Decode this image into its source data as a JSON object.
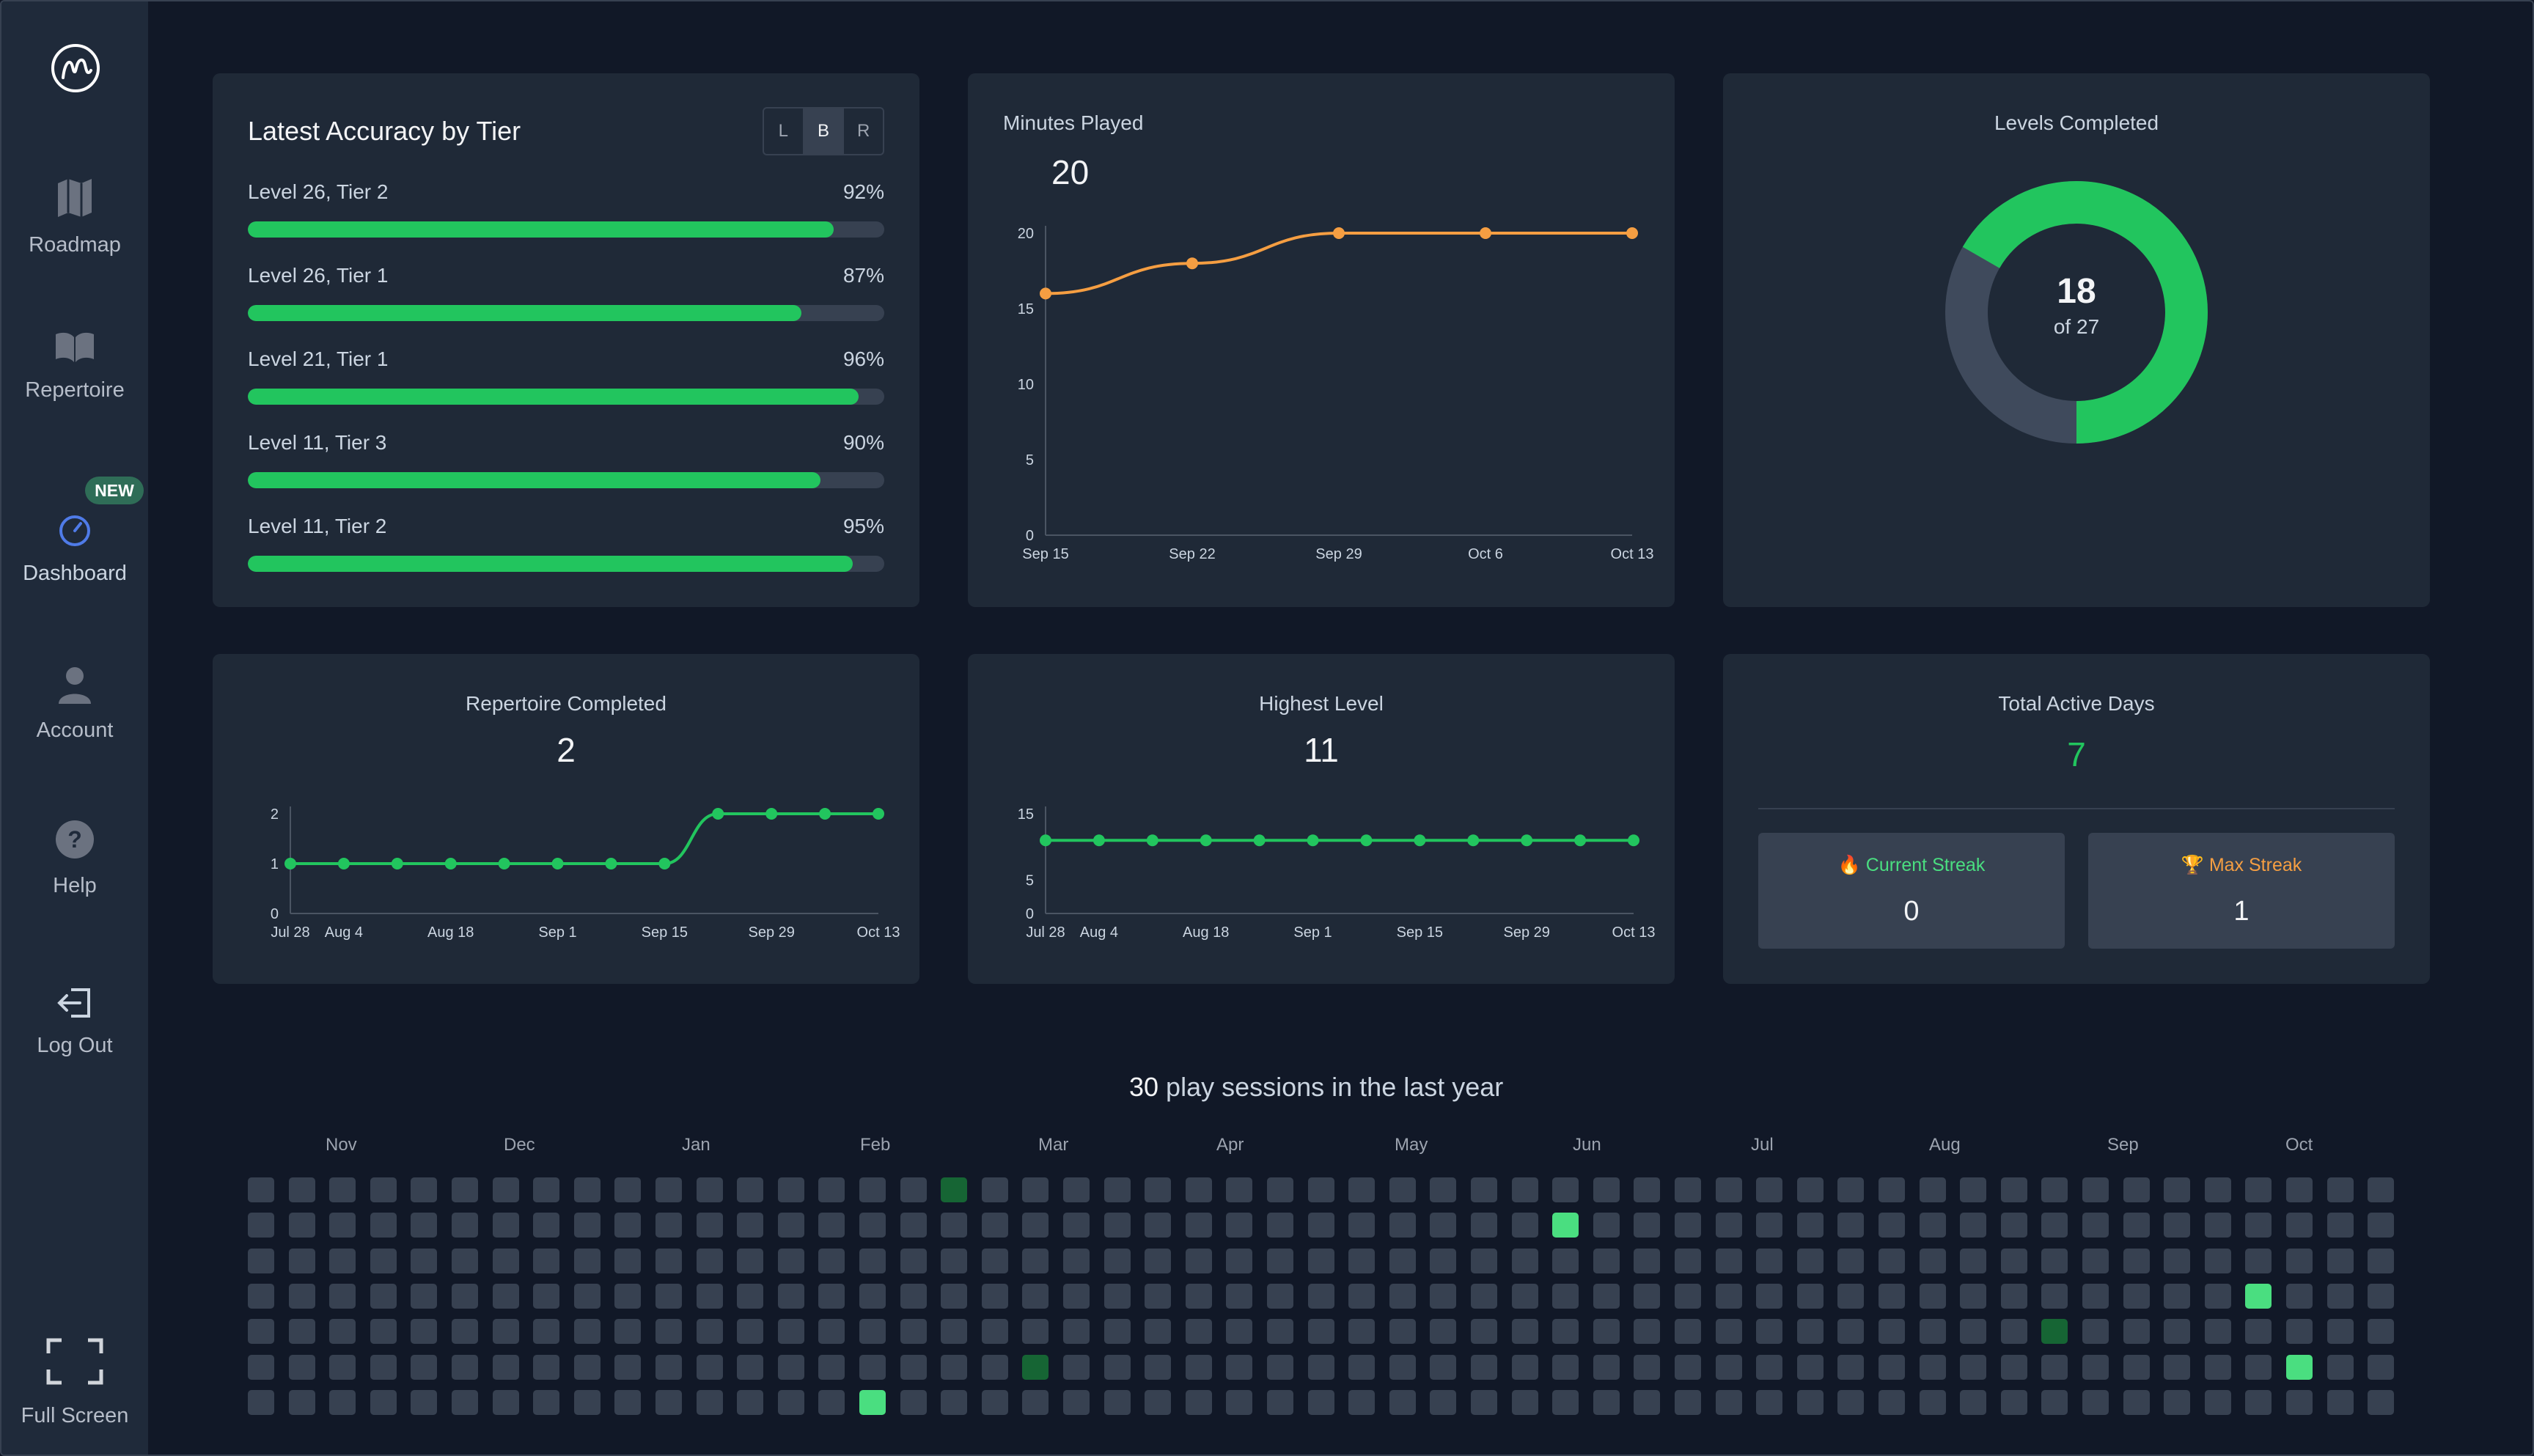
{
  "sidebar": {
    "nav": [
      {
        "id": "roadmap",
        "label": "Roadmap"
      },
      {
        "id": "repertoire",
        "label": "Repertoire"
      },
      {
        "id": "dashboard",
        "label": "Dashboard",
        "badge": "NEW"
      },
      {
        "id": "account",
        "label": "Account"
      },
      {
        "id": "help",
        "label": "Help"
      },
      {
        "id": "logout",
        "label": "Log Out"
      }
    ],
    "fullscreen_label": "Full Screen"
  },
  "accuracy": {
    "title": "Latest Accuracy by Tier",
    "toggle": [
      "L",
      "B",
      "R"
    ],
    "selected": "B",
    "rows": [
      {
        "label": "Level 26, Tier 2",
        "pct": 92,
        "pct_text": "92%"
      },
      {
        "label": "Level 26, Tier 1",
        "pct": 87,
        "pct_text": "87%"
      },
      {
        "label": "Level 21, Tier 1",
        "pct": 96,
        "pct_text": "96%"
      },
      {
        "label": "Level 11, Tier 3",
        "pct": 90,
        "pct_text": "90%"
      },
      {
        "label": "Level 11, Tier 2",
        "pct": 95,
        "pct_text": "95%"
      }
    ]
  },
  "minutes": {
    "title": "Minutes Played",
    "value": "20"
  },
  "levels": {
    "title": "Levels Completed",
    "value": "18",
    "of_text": "of 27",
    "completed": 18,
    "total": 27
  },
  "repertoire": {
    "title": "Repertoire Completed",
    "value": "2"
  },
  "highest": {
    "title": "Highest Level",
    "value": "11"
  },
  "active": {
    "title": "Total Active Days",
    "value": "7",
    "current_label": "Current Streak",
    "current_value": "0",
    "max_label": "Max Streak",
    "max_value": "1"
  },
  "heatmap": {
    "count": "30",
    "suffix": " play sessions in the last year",
    "months": [
      "Nov",
      "Dec",
      "Jan",
      "Feb",
      "Mar",
      "Apr",
      "May",
      "Jun",
      "Jul",
      "Aug",
      "Sep",
      "Oct"
    ],
    "active_cells": [
      {
        "week": 17,
        "day": 0,
        "level": 1
      },
      {
        "week": 32,
        "day": 1,
        "level": 2
      },
      {
        "week": 49,
        "day": 3,
        "level": 2
      },
      {
        "week": 44,
        "day": 4,
        "level": 1
      },
      {
        "week": 19,
        "day": 5,
        "level": 1
      },
      {
        "week": 50,
        "day": 5,
        "level": 2
      },
      {
        "week": 15,
        "day": 6,
        "level": 2
      }
    ],
    "weeks": 53,
    "colors": {
      "empty": "#374151",
      "level1": "#166534",
      "level2": "#4ade80"
    }
  },
  "chart_data": [
    {
      "type": "line",
      "title": "Minutes Played",
      "x": [
        "Sep 15",
        "Sep 22",
        "Sep 29",
        "Oct 6",
        "Oct 13"
      ],
      "y": [
        16,
        18,
        20,
        20,
        20
      ],
      "yticks": [
        0,
        5,
        10,
        15,
        20
      ],
      "ylim": [
        0,
        20
      ],
      "color": "#f59e42"
    },
    {
      "type": "line",
      "title": "Repertoire Completed",
      "x": [
        "Jul 28",
        "Aug 4",
        "Aug 11",
        "Aug 18",
        "Aug 25",
        "Sep 1",
        "Sep 8",
        "Sep 15",
        "Sep 22",
        "Sep 29",
        "Oct 6",
        "Oct 13"
      ],
      "xticks": [
        "Jul 28",
        "Aug 4",
        "Aug 18",
        "Sep 1",
        "Sep 15",
        "Sep 29",
        "Oct 13"
      ],
      "y": [
        1,
        1,
        1,
        1,
        1,
        1,
        1,
        1,
        2,
        2,
        2,
        2
      ],
      "yticks": [
        0,
        1,
        2
      ],
      "ylim": [
        0,
        2
      ],
      "color": "#22c55e"
    },
    {
      "type": "line",
      "title": "Highest Level",
      "x": [
        "Jul 28",
        "Aug 4",
        "Aug 11",
        "Aug 18",
        "Aug 25",
        "Sep 1",
        "Sep 8",
        "Sep 15",
        "Sep 22",
        "Sep 29",
        "Oct 6",
        "Oct 13"
      ],
      "xticks": [
        "Jul 28",
        "Aug 4",
        "Aug 18",
        "Sep 1",
        "Sep 15",
        "Sep 29",
        "Oct 13"
      ],
      "y": [
        11,
        11,
        11,
        11,
        11,
        11,
        11,
        11,
        11,
        11,
        11,
        11
      ],
      "yticks": [
        0,
        5,
        15
      ],
      "ylim": [
        0,
        15
      ],
      "color": "#22c55e"
    }
  ]
}
